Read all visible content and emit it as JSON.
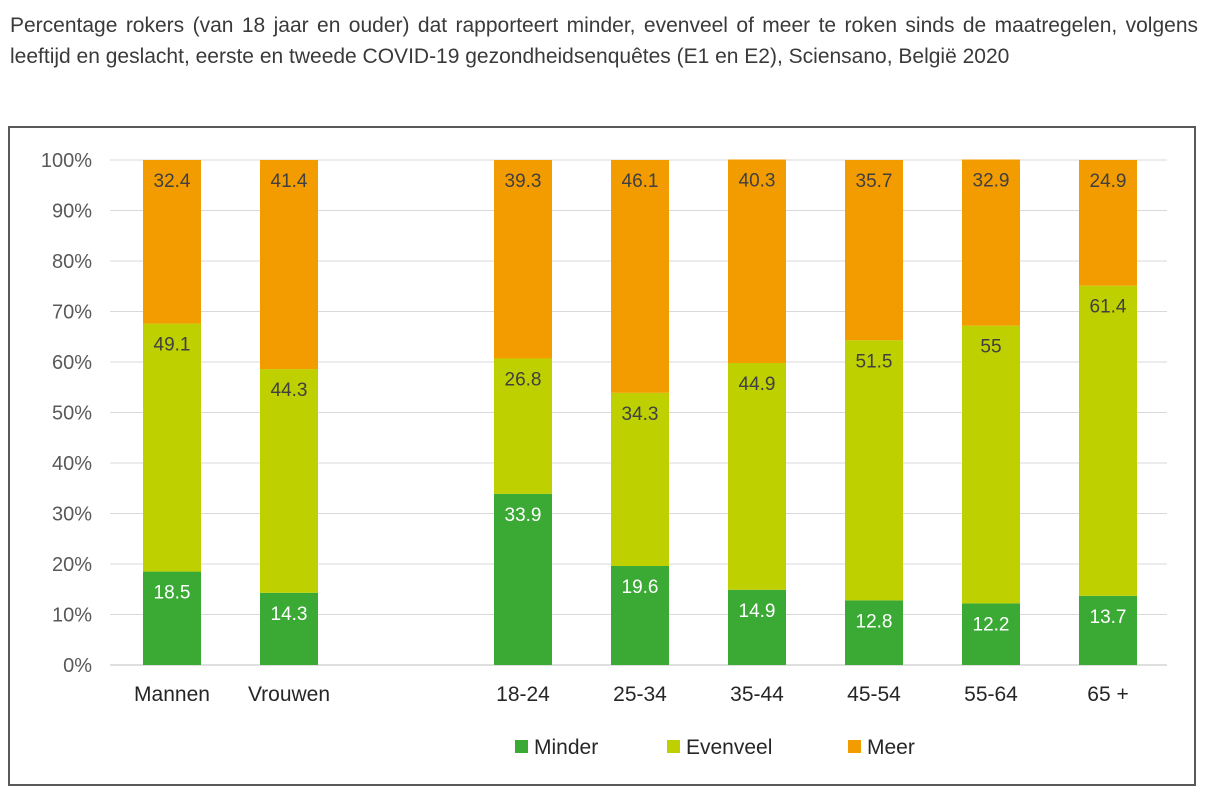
{
  "title": "Percentage rokers (van 18 jaar en ouder) dat rapporteert minder, evenveel of meer te roken sinds de maatregelen, volgens leeftijd en geslacht, eerste en tweede COVID-19 gezondheidsenquêtes (E1 en E2), Sciensano, België 2020",
  "chart_data": {
    "type": "bar",
    "stacked": true,
    "categories": [
      "Mannen",
      "Vrouwen",
      "18-24",
      "25-34",
      "35-44",
      "45-54",
      "55-64",
      "65 +"
    ],
    "series": [
      {
        "name": "Minder",
        "color": "#3aaa35",
        "label_color": "#ffffff",
        "values": [
          18.5,
          14.3,
          33.9,
          19.6,
          14.9,
          12.8,
          12.2,
          13.7
        ]
      },
      {
        "name": "Evenveel",
        "color": "#bed000",
        "label_color": "#404040",
        "values": [
          49.1,
          44.3,
          26.8,
          34.3,
          44.9,
          51.5,
          55,
          61.4
        ]
      },
      {
        "name": "Meer",
        "color": "#f39c00",
        "label_color": "#404040",
        "values": [
          32.4,
          41.4,
          39.3,
          46.1,
          40.3,
          35.7,
          32.9,
          24.9
        ]
      }
    ],
    "y_ticks": [
      "0%",
      "10%",
      "20%",
      "30%",
      "40%",
      "50%",
      "60%",
      "70%",
      "80%",
      "90%",
      "100%"
    ],
    "ylim": [
      0,
      100
    ],
    "grid": true,
    "legend_position": "bottom"
  }
}
